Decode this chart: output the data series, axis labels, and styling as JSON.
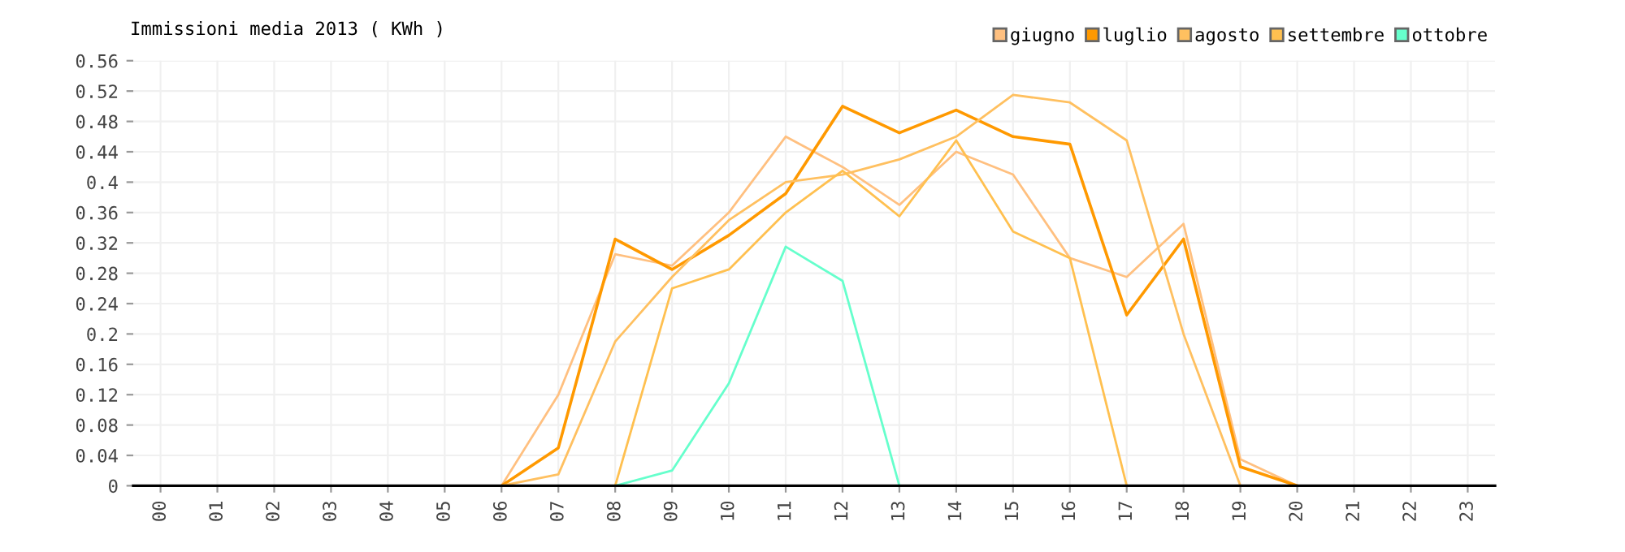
{
  "chart_data": {
    "type": "line",
    "title": "Immissioni media 2013 ( KWh )",
    "categories": [
      "00",
      "01",
      "02",
      "03",
      "04",
      "05",
      "06",
      "07",
      "08",
      "09",
      "10",
      "11",
      "12",
      "13",
      "14",
      "15",
      "16",
      "17",
      "18",
      "19",
      "20",
      "21",
      "22",
      "23"
    ],
    "series": [
      {
        "name": "giugno",
        "color": "#ffc080",
        "values": [
          null,
          null,
          null,
          null,
          null,
          null,
          0,
          0.12,
          0.305,
          0.29,
          0.36,
          0.46,
          0.42,
          0.37,
          0.44,
          0.41,
          0.3,
          0.275,
          0.345,
          0.035,
          0,
          null,
          null,
          null
        ]
      },
      {
        "name": "luglio",
        "color": "#ff9900",
        "values": [
          null,
          null,
          null,
          null,
          null,
          null,
          0,
          0.05,
          0.325,
          0.285,
          0.33,
          0.385,
          0.5,
          0.465,
          0.495,
          0.46,
          0.45,
          0.225,
          0.325,
          0.025,
          0,
          null,
          null,
          null
        ]
      },
      {
        "name": "agosto",
        "color": "#ffc060",
        "values": [
          null,
          null,
          null,
          null,
          null,
          null,
          0,
          0.015,
          0.19,
          0.275,
          0.35,
          0.4,
          0.41,
          0.43,
          0.46,
          0.515,
          0.505,
          0.455,
          0.2,
          0,
          null,
          null,
          null,
          null
        ]
      },
      {
        "name": "settembre",
        "color": "#ffc050",
        "values": [
          null,
          null,
          null,
          null,
          null,
          null,
          null,
          null,
          0,
          0.26,
          0.285,
          0.36,
          0.415,
          0.355,
          0.455,
          0.335,
          0.3,
          0,
          null,
          null,
          null,
          null,
          null,
          null
        ]
      },
      {
        "name": "ottobre",
        "color": "#66ffcc",
        "values": [
          null,
          null,
          null,
          null,
          null,
          null,
          null,
          null,
          0,
          0.02,
          0.135,
          0.315,
          0.27,
          0,
          null,
          null,
          null,
          null,
          null,
          null,
          null,
          null,
          null,
          null
        ]
      }
    ],
    "ylim": [
      0,
      0.56
    ],
    "yticks": [
      0,
      0.04,
      0.08,
      0.12,
      0.16,
      0.2,
      0.24,
      0.28,
      0.32,
      0.36,
      0.4,
      0.44,
      0.48,
      0.52,
      0.56
    ],
    "grid": true,
    "legend": "top right",
    "marker": "none",
    "line_style": "solid"
  }
}
